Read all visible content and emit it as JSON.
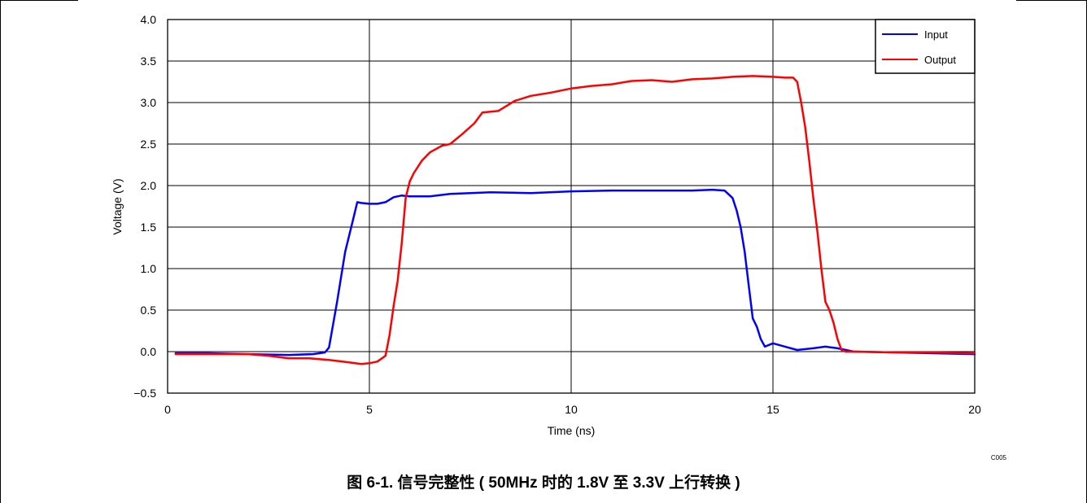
{
  "chart_data": {
    "type": "line",
    "title": "",
    "xlabel": "Time (ns)",
    "ylabel": "Voltage  (V)",
    "xlim": [
      0,
      20
    ],
    "ylim": [
      -0.5,
      4.0
    ],
    "x_ticks": [
      0,
      5,
      10,
      15,
      20
    ],
    "x_tick_labels": [
      "0",
      "5",
      "10",
      "15",
      "20"
    ],
    "y_ticks": [
      -0.5,
      0.0,
      0.5,
      1.0,
      1.5,
      2.0,
      2.5,
      3.0,
      3.5,
      4.0
    ],
    "y_tick_labels": [
      "−0.5",
      "0.0",
      "0.5",
      "1.0",
      "1.5",
      "2.0",
      "2.5",
      "3.0",
      "3.5",
      "4.0"
    ],
    "grid": true,
    "legend_position": "top-right",
    "series": [
      {
        "name": "Input",
        "color": "#0000ff",
        "x": [
          0.2,
          1.0,
          2.0,
          3.0,
          3.6,
          3.9,
          4.0,
          4.2,
          4.4,
          4.6,
          4.7,
          4.8,
          5.0,
          5.2,
          5.4,
          5.6,
          5.8,
          6.0,
          6.5,
          7.0,
          8.0,
          9.0,
          10.0,
          11.0,
          12.0,
          13.0,
          13.5,
          13.8,
          14.0,
          14.1,
          14.2,
          14.3,
          14.4,
          14.5,
          14.6,
          14.7,
          14.8,
          15.0,
          15.3,
          15.6,
          16.0,
          16.3,
          16.6,
          17.0,
          18.0,
          19.0,
          20.0
        ],
        "y": [
          -0.02,
          -0.02,
          -0.03,
          -0.04,
          -0.03,
          -0.01,
          0.05,
          0.6,
          1.2,
          1.6,
          1.8,
          1.79,
          1.78,
          1.78,
          1.8,
          1.86,
          1.88,
          1.87,
          1.87,
          1.9,
          1.92,
          1.91,
          1.93,
          1.94,
          1.94,
          1.94,
          1.95,
          1.94,
          1.85,
          1.7,
          1.5,
          1.2,
          0.8,
          0.4,
          0.3,
          0.15,
          0.06,
          0.1,
          0.06,
          0.02,
          0.04,
          0.06,
          0.04,
          0.0,
          -0.01,
          -0.02,
          -0.03
        ]
      },
      {
        "name": "Output",
        "color": "#ff0000",
        "x": [
          0.2,
          1.0,
          2.0,
          2.5,
          3.0,
          3.5,
          4.0,
          4.5,
          4.8,
          5.0,
          5.2,
          5.4,
          5.5,
          5.6,
          5.7,
          5.8,
          5.9,
          6.0,
          6.1,
          6.3,
          6.5,
          6.8,
          7.0,
          7.3,
          7.6,
          7.8,
          8.2,
          8.6,
          9.0,
          9.5,
          10.0,
          10.5,
          11.0,
          11.5,
          12.0,
          12.5,
          13.0,
          13.5,
          14.0,
          14.5,
          15.0,
          15.3,
          15.5,
          15.6,
          15.7,
          15.8,
          15.9,
          16.0,
          16.1,
          16.2,
          16.3,
          16.4,
          16.5,
          16.6,
          16.7,
          16.8,
          17.0,
          18.0,
          19.0,
          20.0
        ],
        "y": [
          -0.03,
          -0.03,
          -0.03,
          -0.05,
          -0.08,
          -0.08,
          -0.1,
          -0.13,
          -0.15,
          -0.14,
          -0.12,
          -0.05,
          0.2,
          0.55,
          0.85,
          1.3,
          1.85,
          2.05,
          2.15,
          2.3,
          2.4,
          2.48,
          2.5,
          2.62,
          2.75,
          2.88,
          2.9,
          3.02,
          3.08,
          3.12,
          3.17,
          3.2,
          3.22,
          3.26,
          3.27,
          3.25,
          3.28,
          3.29,
          3.31,
          3.32,
          3.31,
          3.3,
          3.3,
          3.25,
          3.0,
          2.7,
          2.3,
          1.85,
          1.45,
          1.0,
          0.6,
          0.5,
          0.35,
          0.15,
          0.02,
          0.0,
          0.0,
          -0.01,
          -0.01,
          -0.02
        ]
      }
    ]
  },
  "figure_code": "C005",
  "caption": "图 6-1. 信号完整性 ( 50MHz 时的 1.8V 至 3.3V 上行转换 )"
}
